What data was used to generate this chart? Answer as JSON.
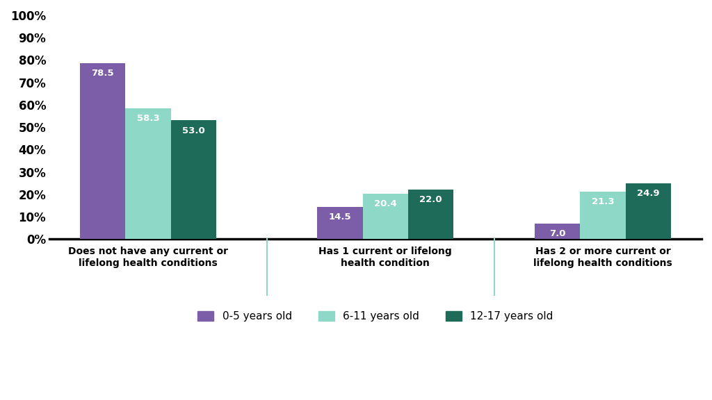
{
  "categories": [
    "Does not have any current or\nlifelong health conditions",
    "Has 1 current or lifelong\nhealth condition",
    "Has 2 or more current or\nlifelong health conditions"
  ],
  "series": [
    {
      "label": "0-5 years old",
      "color": "#7b5ea7",
      "values": [
        78.5,
        14.5,
        7.0
      ]
    },
    {
      "label": "6-11 years old",
      "color": "#8ed8c8",
      "values": [
        58.3,
        20.4,
        21.3
      ]
    },
    {
      "label": "12-17 years old",
      "color": "#1e6b5a",
      "values": [
        53.0,
        22.0,
        24.9
      ]
    }
  ],
  "ylim": [
    0,
    100
  ],
  "yticks": [
    0,
    10,
    20,
    30,
    40,
    50,
    60,
    70,
    80,
    90,
    100
  ],
  "ytick_labels": [
    "0%",
    "10%",
    "20%",
    "30%",
    "40%",
    "50%",
    "60%",
    "70%",
    "80%",
    "90%",
    "100%"
  ],
  "bar_width": 0.23,
  "label_fontsize": 10,
  "tick_fontsize": 12,
  "legend_fontsize": 11,
  "value_fontsize": 9.5,
  "background_color": "#ffffff",
  "divider_color": "#8ed8c8",
  "axis_line_color": "#000000"
}
